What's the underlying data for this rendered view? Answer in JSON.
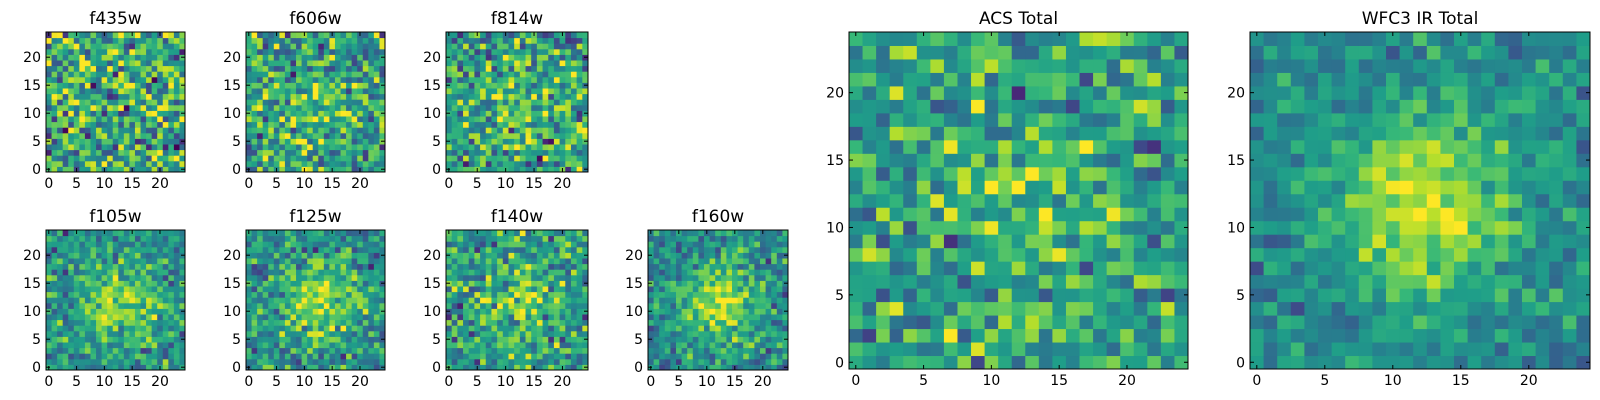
{
  "chart_data": [
    {
      "id": "f435w",
      "type": "heatmap",
      "title": "f435w",
      "grid_size": 25,
      "xlim": [
        0,
        24
      ],
      "ylim": [
        0,
        24
      ],
      "xticks": [
        "0",
        "5",
        "10",
        "15",
        "20"
      ],
      "yticks": [
        "0",
        "5",
        "10",
        "15",
        "20"
      ],
      "colormap": "viridis",
      "signal_strength": 0.0,
      "noise": 0.34,
      "seed": 11
    },
    {
      "id": "f606w",
      "type": "heatmap",
      "title": "f606w",
      "grid_size": 25,
      "xlim": [
        0,
        24
      ],
      "ylim": [
        0,
        24
      ],
      "xticks": [
        "0",
        "5",
        "10",
        "15",
        "20"
      ],
      "yticks": [
        "0",
        "5",
        "10",
        "15",
        "20"
      ],
      "colormap": "viridis",
      "signal_strength": 0.12,
      "noise": 0.3,
      "seed": 23
    },
    {
      "id": "f814w",
      "type": "heatmap",
      "title": "f814w",
      "grid_size": 25,
      "xlim": [
        0,
        24
      ],
      "ylim": [
        0,
        24
      ],
      "xticks": [
        "0",
        "5",
        "10",
        "15",
        "20"
      ],
      "yticks": [
        "0",
        "5",
        "10",
        "15",
        "20"
      ],
      "colormap": "viridis",
      "signal_strength": 0.14,
      "noise": 0.3,
      "seed": 37
    },
    {
      "id": "f105w",
      "type": "heatmap",
      "title": "f105w",
      "grid_size": 25,
      "xlim": [
        0,
        24
      ],
      "ylim": [
        0,
        24
      ],
      "xticks": [
        "0",
        "5",
        "10",
        "15",
        "20"
      ],
      "yticks": [
        "0",
        "5",
        "10",
        "15",
        "20"
      ],
      "colormap": "viridis",
      "signal_strength": 0.32,
      "noise": 0.22,
      "seed": 41
    },
    {
      "id": "f125w",
      "type": "heatmap",
      "title": "f125w",
      "grid_size": 25,
      "xlim": [
        0,
        24
      ],
      "ylim": [
        0,
        24
      ],
      "xticks": [
        "0",
        "5",
        "10",
        "15",
        "20"
      ],
      "yticks": [
        "0",
        "5",
        "10",
        "15",
        "20"
      ],
      "colormap": "viridis",
      "signal_strength": 0.32,
      "noise": 0.22,
      "seed": 53
    },
    {
      "id": "f140w",
      "type": "heatmap",
      "title": "f140w",
      "grid_size": 25,
      "xlim": [
        0,
        24
      ],
      "ylim": [
        0,
        24
      ],
      "xticks": [
        "0",
        "5",
        "10",
        "15",
        "20"
      ],
      "yticks": [
        "0",
        "5",
        "10",
        "15",
        "20"
      ],
      "colormap": "viridis",
      "signal_strength": 0.22,
      "noise": 0.26,
      "seed": 67
    },
    {
      "id": "f160w",
      "type": "heatmap",
      "title": "f160w",
      "grid_size": 25,
      "xlim": [
        0,
        24
      ],
      "ylim": [
        0,
        24
      ],
      "xticks": [
        "0",
        "5",
        "10",
        "15",
        "20"
      ],
      "yticks": [
        "0",
        "5",
        "10",
        "15",
        "20"
      ],
      "colormap": "viridis",
      "signal_strength": 0.38,
      "noise": 0.2,
      "seed": 79
    },
    {
      "id": "acs-total",
      "type": "heatmap",
      "title": "ACS Total",
      "grid_size": 25,
      "xlim": [
        0,
        24
      ],
      "ylim": [
        0,
        24
      ],
      "xticks": [
        "0",
        "5",
        "10",
        "15",
        "20"
      ],
      "yticks": [
        "0",
        "5",
        "10",
        "15",
        "20"
      ],
      "colormap": "viridis",
      "signal_strength": 0.14,
      "noise": 0.24,
      "seed": 97
    },
    {
      "id": "wfc3-ir-total",
      "type": "heatmap",
      "title": "WFC3 IR Total",
      "grid_size": 25,
      "xlim": [
        0,
        24
      ],
      "ylim": [
        0,
        24
      ],
      "xticks": [
        "0",
        "5",
        "10",
        "15",
        "20"
      ],
      "yticks": [
        "0",
        "5",
        "10",
        "15",
        "20"
      ],
      "colormap": "viridis",
      "signal_strength": 0.42,
      "noise": 0.14,
      "seed": 113
    }
  ]
}
